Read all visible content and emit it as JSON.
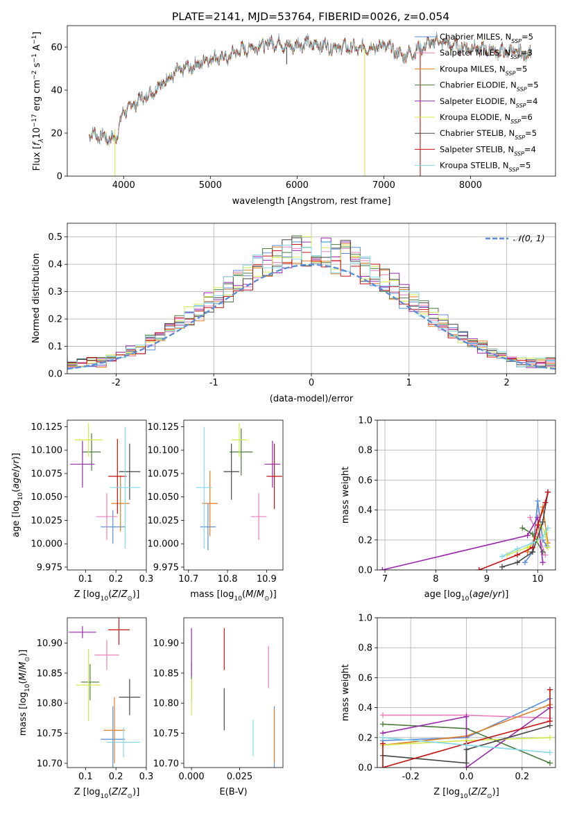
{
  "title": "PLATE=2141, MJD=53764, FIBERID=0026, z=0.054",
  "colors": {
    "Chabrier MILES": "#5b8dd9",
    "Salpeter MILES": "#e97fb8",
    "Kroupa MILES": "#e07b20",
    "Chabrier ELODIE": "#4a7a3a",
    "Salpeter ELODIE": "#9b27b0",
    "Kroupa ELODIE": "#d4e84a",
    "Chabrier STELIB": "#444444",
    "Salpeter STELIB": "#c81010",
    "Kroupa STELIB": "#80d8e8"
  },
  "chart_data": [
    {
      "type": "line",
      "id": "spectrum",
      "title": "PLATE=2141, MJD=53764, FIBERID=0026, z=0.054",
      "xlabel": "wavelength [Angstrom, rest frame]",
      "ylabel": "Flux [f_λ 10^-17 erg cm^-2 s^-1 A^-1]",
      "xlim": [
        3350,
        8980
      ],
      "ylim": [
        0,
        70
      ],
      "xticks": [
        4000,
        5000,
        6000,
        7000,
        8000
      ],
      "yticks": [
        0,
        20,
        40,
        60
      ],
      "continuum": {
        "x": [
          3600,
          3700,
          3800,
          3900,
          4000,
          4100,
          4200,
          4300,
          4400,
          4500,
          4600,
          4700,
          4800,
          4900,
          5000,
          5100,
          5200,
          5300,
          5400,
          5500,
          5600,
          5700,
          5800,
          5900,
          6000,
          6100,
          6200,
          6300,
          6400,
          6500,
          6600,
          6700,
          6800,
          6900,
          7000,
          7100,
          7200,
          7300,
          7400,
          7500,
          7600,
          7700,
          7800,
          7900,
          8000,
          8100,
          8200,
          8300,
          8400,
          8500,
          8600,
          8700
        ],
        "y": [
          20,
          19,
          18,
          17,
          30,
          33,
          36,
          38,
          42,
          45,
          48,
          50,
          51,
          53,
          55,
          55,
          55,
          58,
          59,
          60,
          61,
          62,
          62,
          60,
          61,
          62,
          61,
          61,
          60,
          60,
          60,
          59,
          60,
          60,
          61,
          59,
          56,
          57,
          59,
          61,
          63,
          62,
          61,
          60,
          60,
          59,
          59,
          58,
          58,
          58,
          57,
          57
        ]
      },
      "legend_position": "right",
      "legend": [
        {
          "label": "Chabrier MILES, N_SSP=5",
          "prefix": "Chabrier MILES, N",
          "nssp": "5"
        },
        {
          "label": "Salpeter MILES, N_SSP=3",
          "prefix": "Salpeter MILES, N",
          "nssp": "3"
        },
        {
          "label": "Kroupa MILES, N_SSP=5",
          "prefix": "Kroupa MILES, N",
          "nssp": "5"
        },
        {
          "label": "Chabrier ELODIE, N_SSP=5",
          "prefix": "Chabrier ELODIE, N",
          "nssp": "5"
        },
        {
          "label": "Salpeter ELODIE, N_SSP=4",
          "prefix": "Salpeter ELODIE, N",
          "nssp": "4"
        },
        {
          "label": "Kroupa ELODIE, N_SSP=6",
          "prefix": "Kroupa ELODIE, N",
          "nssp": "6"
        },
        {
          "label": "Chabrier STELIB, N_SSP=5",
          "prefix": "Chabrier STELIB, N",
          "nssp": "5"
        },
        {
          "label": "Salpeter STELIB, N_SSP=4",
          "prefix": "Salpeter STELIB, N",
          "nssp": "4"
        },
        {
          "label": "Kroupa STELIB, N_SSP=5",
          "prefix": "Kroupa STELIB, N",
          "nssp": "5"
        }
      ],
      "spikes": [
        {
          "series": "Kroupa ELODIE",
          "x": 3900,
          "y0": 0,
          "y1": 22
        },
        {
          "series": "Kroupa ELODIE",
          "x": 6780,
          "y0": 0,
          "y1": 59
        },
        {
          "series": "Salpeter STELIB",
          "x": 7420,
          "y0": 0,
          "y1": 58
        },
        {
          "series": "Chabrier STELIB",
          "x": 5880,
          "y0": 52,
          "y1": 60
        }
      ]
    },
    {
      "type": "line",
      "id": "residuals",
      "xlabel": "(data-model)/error",
      "ylabel": "Normed distribution",
      "xlim": [
        -2.5,
        2.5
      ],
      "ylim": [
        0,
        0.55
      ],
      "xticks": [
        -2,
        -1,
        0,
        1,
        2
      ],
      "yticks": [
        0.0,
        0.1,
        0.2,
        0.3,
        0.4,
        0.5
      ],
      "grid": true,
      "legend": [
        {
          "label": "𝒩(0, 1)",
          "series": "Chabrier MILES",
          "style": "dashed"
        }
      ],
      "legend_position": "top-right",
      "histogram_bin_width": 0.1
    },
    {
      "type": "scatter",
      "id": "Z-age",
      "xlabel": "Z [log10(Z/Z_sun)]",
      "ylabel": "age [log10(age/yr)]",
      "xlim": [
        0.04,
        0.3
      ],
      "ylim": [
        9.972,
        10.132
      ],
      "xticks": [
        0.1,
        0.2,
        0.3
      ],
      "yticks": [
        9.975,
        10.0,
        10.025,
        10.05,
        10.075,
        10.1,
        10.125
      ],
      "points": [
        {
          "series": "Chabrier MILES",
          "x": 0.19,
          "y": 10.018,
          "xerr": 0.04,
          "yerr": 0.018
        },
        {
          "series": "Salpeter MILES",
          "x": 0.17,
          "y": 10.029,
          "xerr": 0.035,
          "yerr": 0.025
        },
        {
          "series": "Kroupa MILES",
          "x": 0.215,
          "y": 10.043,
          "xerr": 0.03,
          "yerr": 0.03
        },
        {
          "series": "Chabrier ELODIE",
          "x": 0.12,
          "y": 10.098,
          "xerr": 0.03,
          "yerr": 0.02
        },
        {
          "series": "Salpeter ELODIE",
          "x": 0.09,
          "y": 10.085,
          "xerr": 0.04,
          "yerr": 0.025
        },
        {
          "series": "Kroupa ELODIE",
          "x": 0.11,
          "y": 10.111,
          "xerr": 0.045,
          "yerr": 0.018
        },
        {
          "series": "Chabrier STELIB",
          "x": 0.245,
          "y": 10.077,
          "xerr": 0.035,
          "yerr": 0.03
        },
        {
          "series": "Salpeter STELIB",
          "x": 0.205,
          "y": 10.072,
          "xerr": 0.03,
          "yerr": 0.04
        },
        {
          "series": "Kroupa STELIB",
          "x": 0.23,
          "y": 10.06,
          "xerr": 0.05,
          "yerr": 0.065
        }
      ]
    },
    {
      "type": "scatter",
      "id": "mass-age",
      "xlabel": "mass [log10(M/M_sun)]",
      "ylabel": "",
      "xlim": [
        10.688,
        10.942
      ],
      "ylim": [
        9.972,
        10.132
      ],
      "xticks": [
        10.7,
        10.8,
        10.9
      ],
      "yticks": [
        9.975,
        10.0,
        10.025,
        10.05,
        10.075,
        10.1,
        10.125
      ],
      "points": [
        {
          "series": "Chabrier MILES",
          "x": 10.75,
          "y": 10.018,
          "xerr": 0.02,
          "yerr": 0.025
        },
        {
          "series": "Salpeter MILES",
          "x": 10.88,
          "y": 10.029,
          "xerr": 0.02,
          "yerr": 0.025
        },
        {
          "series": "Kroupa MILES",
          "x": 10.755,
          "y": 10.043,
          "xerr": 0.02,
          "yerr": 0.035
        },
        {
          "series": "Chabrier ELODIE",
          "x": 10.835,
          "y": 10.098,
          "xerr": 0.03,
          "yerr": 0.025
        },
        {
          "series": "Salpeter ELODIE",
          "x": 10.915,
          "y": 10.085,
          "xerr": 0.02,
          "yerr": 0.025
        },
        {
          "series": "Kroupa ELODIE",
          "x": 10.83,
          "y": 10.111,
          "xerr": 0.02,
          "yerr": 0.018
        },
        {
          "series": "Chabrier STELIB",
          "x": 10.81,
          "y": 10.077,
          "xerr": 0.02,
          "yerr": 0.03
        },
        {
          "series": "Salpeter STELIB",
          "x": 10.92,
          "y": 10.072,
          "xerr": 0.02,
          "yerr": 0.035
        },
        {
          "series": "Kroupa STELIB",
          "x": 10.74,
          "y": 10.06,
          "xerr": 0.02,
          "yerr": 0.065
        }
      ]
    },
    {
      "type": "line",
      "id": "age-mass-weight",
      "xlabel": "age [log10(age/yr)]",
      "ylabel": "mass weight",
      "xlim": [
        6.85,
        10.35
      ],
      "ylim": [
        0,
        1
      ],
      "xticks": [
        7,
        8,
        9,
        10
      ],
      "yticks": [
        0.0,
        0.2,
        0.4,
        0.6,
        0.8,
        1.0
      ],
      "grid": true,
      "series": [
        {
          "name": "Chabrier MILES",
          "x": [
            9.75,
            9.9,
            10.0,
            10.1,
            10.18
          ],
          "y": [
            0.05,
            0.12,
            0.46,
            0.2,
            0.16
          ]
        },
        {
          "name": "Salpeter MILES",
          "x": [
            9.85,
            10.05,
            10.15
          ],
          "y": [
            0.35,
            0.2,
            0.1
          ]
        },
        {
          "name": "Kroupa MILES",
          "x": [
            9.8,
            9.95,
            10.1,
            10.2
          ],
          "y": [
            0.12,
            0.22,
            0.42,
            0.18
          ]
        },
        {
          "name": "Chabrier ELODIE",
          "x": [
            9.7,
            9.9,
            10.1
          ],
          "y": [
            0.28,
            0.24,
            0.12
          ]
        },
        {
          "name": "Salpeter ELODIE",
          "x": [
            6.95,
            9.8,
            10.0,
            10.1
          ],
          "y": [
            0.0,
            0.23,
            0.35,
            0.05
          ]
        },
        {
          "name": "Kroupa ELODIE",
          "x": [
            9.4,
            9.8,
            10.0,
            10.05,
            10.15,
            10.2
          ],
          "y": [
            0.1,
            0.15,
            0.2,
            0.3,
            0.25,
            0.15
          ]
        },
        {
          "name": "Chabrier STELIB",
          "x": [
            9.3,
            9.6,
            9.9,
            10.1,
            10.2
          ],
          "y": [
            0.02,
            0.05,
            0.12,
            0.32,
            0.52
          ]
        },
        {
          "name": "Salpeter STELIB",
          "x": [
            8.85,
            9.6,
            9.9,
            10.0,
            10.15,
            10.2
          ],
          "y": [
            0.0,
            0.1,
            0.15,
            0.3,
            0.45,
            0.52
          ]
        },
        {
          "name": "Kroupa STELIB",
          "x": [
            9.3,
            9.6,
            9.9,
            10.1,
            10.2
          ],
          "y": [
            0.09,
            0.14,
            0.18,
            0.22,
            0.28
          ]
        }
      ]
    },
    {
      "type": "scatter",
      "id": "Z-mass",
      "xlabel": "Z [log10(Z/Z_sun)]",
      "ylabel": "mass [log10(M/M_sun)]",
      "xlim": [
        0.04,
        0.3
      ],
      "ylim": [
        10.693,
        10.942
      ],
      "xticks": [
        0.1,
        0.2,
        0.3
      ],
      "yticks": [
        10.7,
        10.75,
        10.8,
        10.85,
        10.9
      ],
      "points": [
        {
          "series": "Chabrier MILES",
          "x": 0.19,
          "y": 10.74,
          "xerr": 0.04,
          "yerr": 0.055
        },
        {
          "series": "Salpeter MILES",
          "x": 0.17,
          "y": 10.88,
          "xerr": 0.04,
          "yerr": 0.025
        },
        {
          "series": "Kroupa MILES",
          "x": 0.195,
          "y": 10.755,
          "xerr": 0.035,
          "yerr": 0.055
        },
        {
          "series": "Chabrier ELODIE",
          "x": 0.115,
          "y": 10.835,
          "xerr": 0.03,
          "yerr": 0.03
        },
        {
          "series": "Salpeter ELODIE",
          "x": 0.09,
          "y": 10.918,
          "xerr": 0.045,
          "yerr": 0.01
        },
        {
          "series": "Kroupa ELODIE",
          "x": 0.11,
          "y": 10.83,
          "xerr": 0.04,
          "yerr": 0.06
        },
        {
          "series": "Chabrier STELIB",
          "x": 0.245,
          "y": 10.81,
          "xerr": 0.035,
          "yerr": 0.03
        },
        {
          "series": "Salpeter STELIB",
          "x": 0.21,
          "y": 10.922,
          "xerr": 0.035,
          "yerr": 0.025
        },
        {
          "series": "Kroupa STELIB",
          "x": 0.225,
          "y": 10.735,
          "xerr": 0.055,
          "yerr": 0.025
        }
      ]
    },
    {
      "type": "scatter",
      "id": "ebv-mass",
      "xlabel": "E(B-V)",
      "ylabel": "",
      "xlim": [
        -0.004,
        0.0475
      ],
      "ylim": [
        10.693,
        10.942
      ],
      "xticks": [
        0.0,
        0.025
      ],
      "xticklabels": [
        "0.000",
        "0.025"
      ],
      "yticks": [
        10.7,
        10.75,
        10.8,
        10.85,
        10.9
      ],
      "points": [
        {
          "series": "Chabrier MILES",
          "x": 0.043,
          "y": 10.74,
          "xerr": 0.0,
          "yerr": 0.055
        },
        {
          "series": "Salpeter MILES",
          "x": 0.04,
          "y": 10.86,
          "xerr": 0.0,
          "yerr": 0.035
        },
        {
          "series": "Kroupa MILES",
          "x": 0.043,
          "y": 10.745,
          "xerr": 0.0,
          "yerr": 0.045
        },
        {
          "series": "Chabrier ELODIE",
          "x": 0.0,
          "y": 10.835,
          "xerr": 0.0,
          "yerr": 0.03
        },
        {
          "series": "Salpeter ELODIE",
          "x": 0.0,
          "y": 10.885,
          "xerr": 0.0,
          "yerr": 0.04
        },
        {
          "series": "Kroupa ELODIE",
          "x": 0.0,
          "y": 10.81,
          "xerr": 0.0,
          "yerr": 0.03
        },
        {
          "series": "Chabrier STELIB",
          "x": 0.017,
          "y": 10.79,
          "xerr": 0.0,
          "yerr": 0.035
        },
        {
          "series": "Salpeter STELIB",
          "x": 0.017,
          "y": 10.89,
          "xerr": 0.0,
          "yerr": 0.035
        },
        {
          "series": "Kroupa STELIB",
          "x": 0.032,
          "y": 10.742,
          "xerr": 0.0,
          "yerr": 0.03
        }
      ]
    },
    {
      "type": "line",
      "id": "Z-mass-weight",
      "xlabel": "Z [log10(Z/Z_sun)]",
      "ylabel": "mass weight",
      "xlim": [
        -0.32,
        0.32
      ],
      "ylim": [
        0,
        1
      ],
      "xticks": [
        -0.2,
        0.0,
        0.2
      ],
      "yticks": [
        0.0,
        0.2,
        0.4,
        0.6,
        0.8,
        1.0
      ],
      "grid": true,
      "series": [
        {
          "name": "Chabrier MILES",
          "x": [
            -0.3,
            0.0,
            0.3
          ],
          "y": [
            0.18,
            0.2,
            0.46
          ]
        },
        {
          "name": "Salpeter MILES",
          "x": [
            -0.3,
            0.0,
            0.3
          ],
          "y": [
            0.35,
            0.35,
            0.33
          ]
        },
        {
          "name": "Kroupa MILES",
          "x": [
            -0.3,
            0.0,
            0.3
          ],
          "y": [
            0.15,
            0.21,
            0.42
          ]
        },
        {
          "name": "Chabrier ELODIE",
          "x": [
            -0.3,
            0.0,
            0.3
          ],
          "y": [
            0.29,
            0.26,
            0.03
          ]
        },
        {
          "name": "Salpeter ELODIE",
          "x": [
            -0.3,
            0.0,
            0.0,
            0.3
          ],
          "y": [
            0.23,
            0.34,
            0.0,
            0.4
          ]
        },
        {
          "name": "Kroupa ELODIE",
          "x": [
            -0.3,
            0.0,
            0.3
          ],
          "y": [
            0.15,
            0.18,
            0.2
          ]
        },
        {
          "name": "Chabrier STELIB",
          "x": [
            -0.3,
            0.0,
            0.0,
            0.3
          ],
          "y": [
            0.08,
            0.03,
            0.12,
            0.28
          ]
        },
        {
          "name": "Salpeter STELIB",
          "x": [
            -0.3,
            -0.3,
            0.0,
            0.3,
            0.3
          ],
          "y": [
            0.16,
            0.0,
            0.16,
            0.31,
            0.52
          ]
        },
        {
          "name": "Kroupa STELIB",
          "x": [
            -0.3,
            0.0,
            0.3
          ],
          "y": [
            0.2,
            0.15,
            0.1
          ]
        }
      ]
    }
  ]
}
